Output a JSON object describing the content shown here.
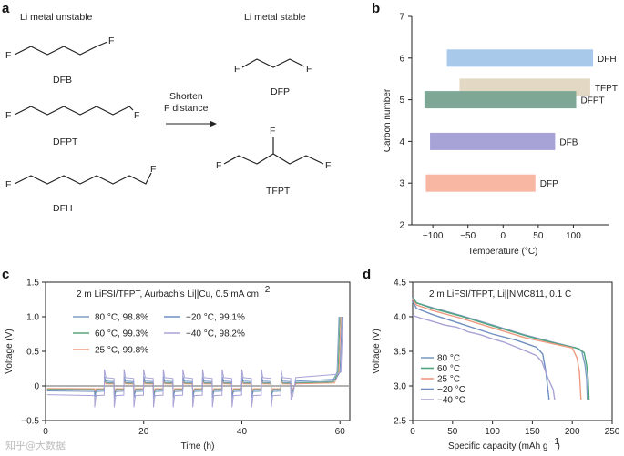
{
  "panel_labels": {
    "a": "a",
    "b": "b",
    "c": "c",
    "d": "d"
  },
  "panel_a": {
    "left_header": "Li metal unstable",
    "right_header": "Li metal stable",
    "arrow_label_line1": "Shorten",
    "arrow_label_line2": "F distance",
    "molecules": {
      "dfb": "DFB",
      "dfpt": "DFPT",
      "dfh": "DFH",
      "dfp": "DFP",
      "tfpt": "TFPT",
      "f": "F"
    }
  },
  "chart_data": [
    {
      "panel": "b",
      "type": "bar",
      "orientation": "horizontal",
      "xlabel": "Temperature (°C)",
      "ylabel": "Carbon number",
      "xlim": [
        -130,
        150
      ],
      "ylim": [
        2,
        7
      ],
      "xticks": [
        -100,
        -50,
        0,
        50,
        100
      ],
      "yticks": [
        2,
        3,
        4,
        5,
        6,
        7
      ],
      "bars": [
        {
          "label": "DFH",
          "y": 6,
          "start": -80,
          "end": 128,
          "color": "#a9c9ea"
        },
        {
          "label": "TFPT",
          "y": 5.3,
          "start": -62,
          "end": 124,
          "color": "#e3d8c4"
        },
        {
          "label": "DFPT",
          "y": 5,
          "start": -112,
          "end": 104,
          "color": "#7ea895"
        },
        {
          "label": "DFB",
          "y": 4,
          "start": -104,
          "end": 74,
          "color": "#a8a3d6"
        },
        {
          "label": "DFP",
          "y": 3,
          "start": -110,
          "end": 46,
          "color": "#f7b7a3"
        }
      ]
    },
    {
      "panel": "c",
      "type": "line",
      "title": "2 m LiFSI/TFPT, Aurbach's Li||Cu, 0.5 mA cm",
      "title_sup": "−2",
      "xlabel": "Time (h)",
      "ylabel": "Voltage (V)",
      "xlim": [
        0,
        62
      ],
      "ylim": [
        -0.5,
        1.5
      ],
      "xticks": [
        0,
        20,
        40,
        60
      ],
      "yticks": [
        "−0.5",
        "0",
        "0.5",
        "1.0",
        "1.5"
      ],
      "series": [
        {
          "name": "80 °C, 98.8%",
          "color": "#7f9ec4"
        },
        {
          "name": "60 °C, 99.3%",
          "color": "#59a67a"
        },
        {
          "name": "25 °C, 99.8%",
          "color": "#ee9a80"
        },
        {
          "name": "−20 °C, 99.1%",
          "color": "#6f8fc0"
        },
        {
          "name": "−40 °C, 98.2%",
          "color": "#a9a3d6"
        }
      ],
      "profile": {
        "initial_plating_end_h": 10,
        "cycle_start_h": 10,
        "cycle_period_h": 4,
        "cycles": 10,
        "cycle_end_h": 50,
        "final_strip_end_h": 60,
        "cutoff_V": 1.0
      }
    },
    {
      "panel": "d",
      "type": "line",
      "title": "2 m LiFSI/TFPT, Li||NMC811, 0.1 C",
      "xlabel": "Specific capacity (mAh g",
      "xlabel_sup": "−1",
      "xlabel_tail": ")",
      "ylabel": "Voltage (V)",
      "xlim": [
        0,
        250
      ],
      "ylim": [
        2.5,
        4.5
      ],
      "xticks": [
        0,
        50,
        100,
        150,
        200,
        250
      ],
      "yticks": [
        "2.5",
        "3.0",
        "3.5",
        "4.0",
        "4.5"
      ],
      "series": [
        {
          "name": "80 °C",
          "color": "#7f9ec4",
          "points": [
            [
              0,
              4.28
            ],
            [
              5,
              4.2
            ],
            [
              25,
              4.13
            ],
            [
              60,
              4.02
            ],
            [
              100,
              3.88
            ],
            [
              140,
              3.74
            ],
            [
              180,
              3.62
            ],
            [
              205,
              3.55
            ],
            [
              212,
              3.5
            ],
            [
              216,
              3.3
            ],
            [
              218,
              3.1
            ],
            [
              219,
              2.8
            ]
          ]
        },
        {
          "name": "60 °C",
          "color": "#4fa37e",
          "points": [
            [
              0,
              4.27
            ],
            [
              5,
              4.2
            ],
            [
              25,
              4.12
            ],
            [
              60,
              4.01
            ],
            [
              100,
              3.87
            ],
            [
              140,
              3.73
            ],
            [
              180,
              3.61
            ],
            [
              208,
              3.54
            ],
            [
              215,
              3.48
            ],
            [
              218,
              3.3
            ],
            [
              220,
              3.1
            ],
            [
              221,
              2.8
            ]
          ]
        },
        {
          "name": "25 °C",
          "color": "#ee9a80",
          "points": [
            [
              0,
              4.25
            ],
            [
              5,
              4.17
            ],
            [
              25,
              4.09
            ],
            [
              60,
              3.98
            ],
            [
              100,
              3.84
            ],
            [
              140,
              3.7
            ],
            [
              180,
              3.6
            ],
            [
              200,
              3.55
            ],
            [
              206,
              3.4
            ],
            [
              209,
              3.2
            ],
            [
              211,
              2.8
            ]
          ]
        },
        {
          "name": "−20 °C",
          "color": "#6f8fc0",
          "points": [
            [
              0,
              4.22
            ],
            [
              5,
              4.12
            ],
            [
              25,
              4.03
            ],
            [
              60,
              3.9
            ],
            [
              100,
              3.75
            ],
            [
              130,
              3.66
            ],
            [
              155,
              3.56
            ],
            [
              163,
              3.46
            ],
            [
              167,
              3.2
            ],
            [
              170,
              2.9
            ],
            [
              171,
              2.8
            ]
          ]
        },
        {
          "name": "−40 °C",
          "color": "#a9a3d6",
          "points": [
            [
              0,
              4.02
            ],
            [
              10,
              3.98
            ],
            [
              20,
              3.95
            ],
            [
              40,
              3.88
            ],
            [
              55,
              3.85
            ],
            [
              70,
              3.78
            ],
            [
              85,
              3.74
            ],
            [
              100,
              3.68
            ],
            [
              115,
              3.63
            ],
            [
              130,
              3.56
            ],
            [
              145,
              3.49
            ],
            [
              155,
              3.44
            ],
            [
              162,
              3.35
            ],
            [
              170,
              3.1
            ],
            [
              176,
              2.95
            ],
            [
              178,
              2.8
            ]
          ]
        }
      ]
    }
  ],
  "watermark": "知乎@大数据"
}
